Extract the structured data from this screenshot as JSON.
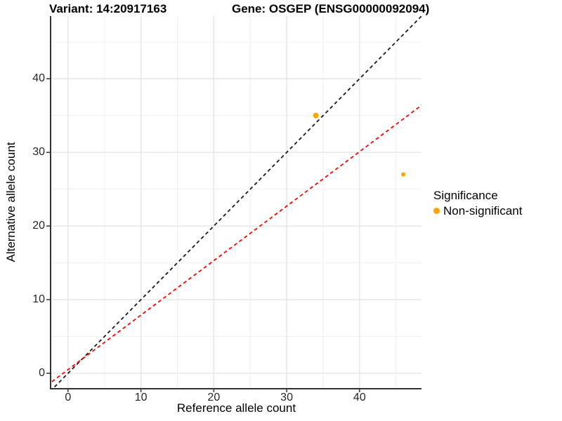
{
  "figure": {
    "title_left": "Variant: 14:20917163",
    "title_right": "Gene: OSGEP (ENSG00000092094)"
  },
  "axes": {
    "x_label": "Reference allele count",
    "y_label": "Alternative allele count"
  },
  "legend": {
    "title": "Significance",
    "items": [
      {
        "label": "Non-significant",
        "color": "#FFA500",
        "shape": "dot"
      }
    ]
  },
  "chart_data": {
    "type": "scatter",
    "title_left": "Variant: 14:20917163",
    "title_right": "Gene: OSGEP (ENSG00000092094)",
    "xlabel": "Reference allele count",
    "ylabel": "Alternative allele count",
    "xlim": [
      -2.3,
      48.5
    ],
    "ylim": [
      -2.0,
      48.5
    ],
    "x_ticks": [
      0,
      10,
      20,
      30,
      40
    ],
    "y_ticks": [
      0,
      10,
      20,
      30,
      40
    ],
    "x_minor_ticks": [
      5,
      15,
      25,
      35,
      45
    ],
    "y_minor_ticks": [
      5,
      15,
      25,
      35,
      45
    ],
    "grid": "major+minor",
    "legend_position": "right",
    "points": [
      {
        "x": 34,
        "y": 35,
        "series": "Non-significant",
        "color": "#FFA500",
        "radius_px": 4
      },
      {
        "x": 46,
        "y": 27,
        "series": "Non-significant",
        "color": "#FFA500",
        "radius_px": 3
      }
    ],
    "lines": [
      {
        "name": "identity-line",
        "slope": 1.0,
        "intercept": 0,
        "color": "#1A1A1A",
        "style": "dashed"
      },
      {
        "name": "expected-ratio-line",
        "slope": 0.74,
        "intercept": 0.5,
        "color": "#FF0000",
        "style": "dashed"
      }
    ],
    "colors": {
      "grid_major": "#E3E3E3",
      "grid_minor": "#F0F0F0",
      "axis_line": "#333333",
      "point": "#FFA500"
    }
  }
}
